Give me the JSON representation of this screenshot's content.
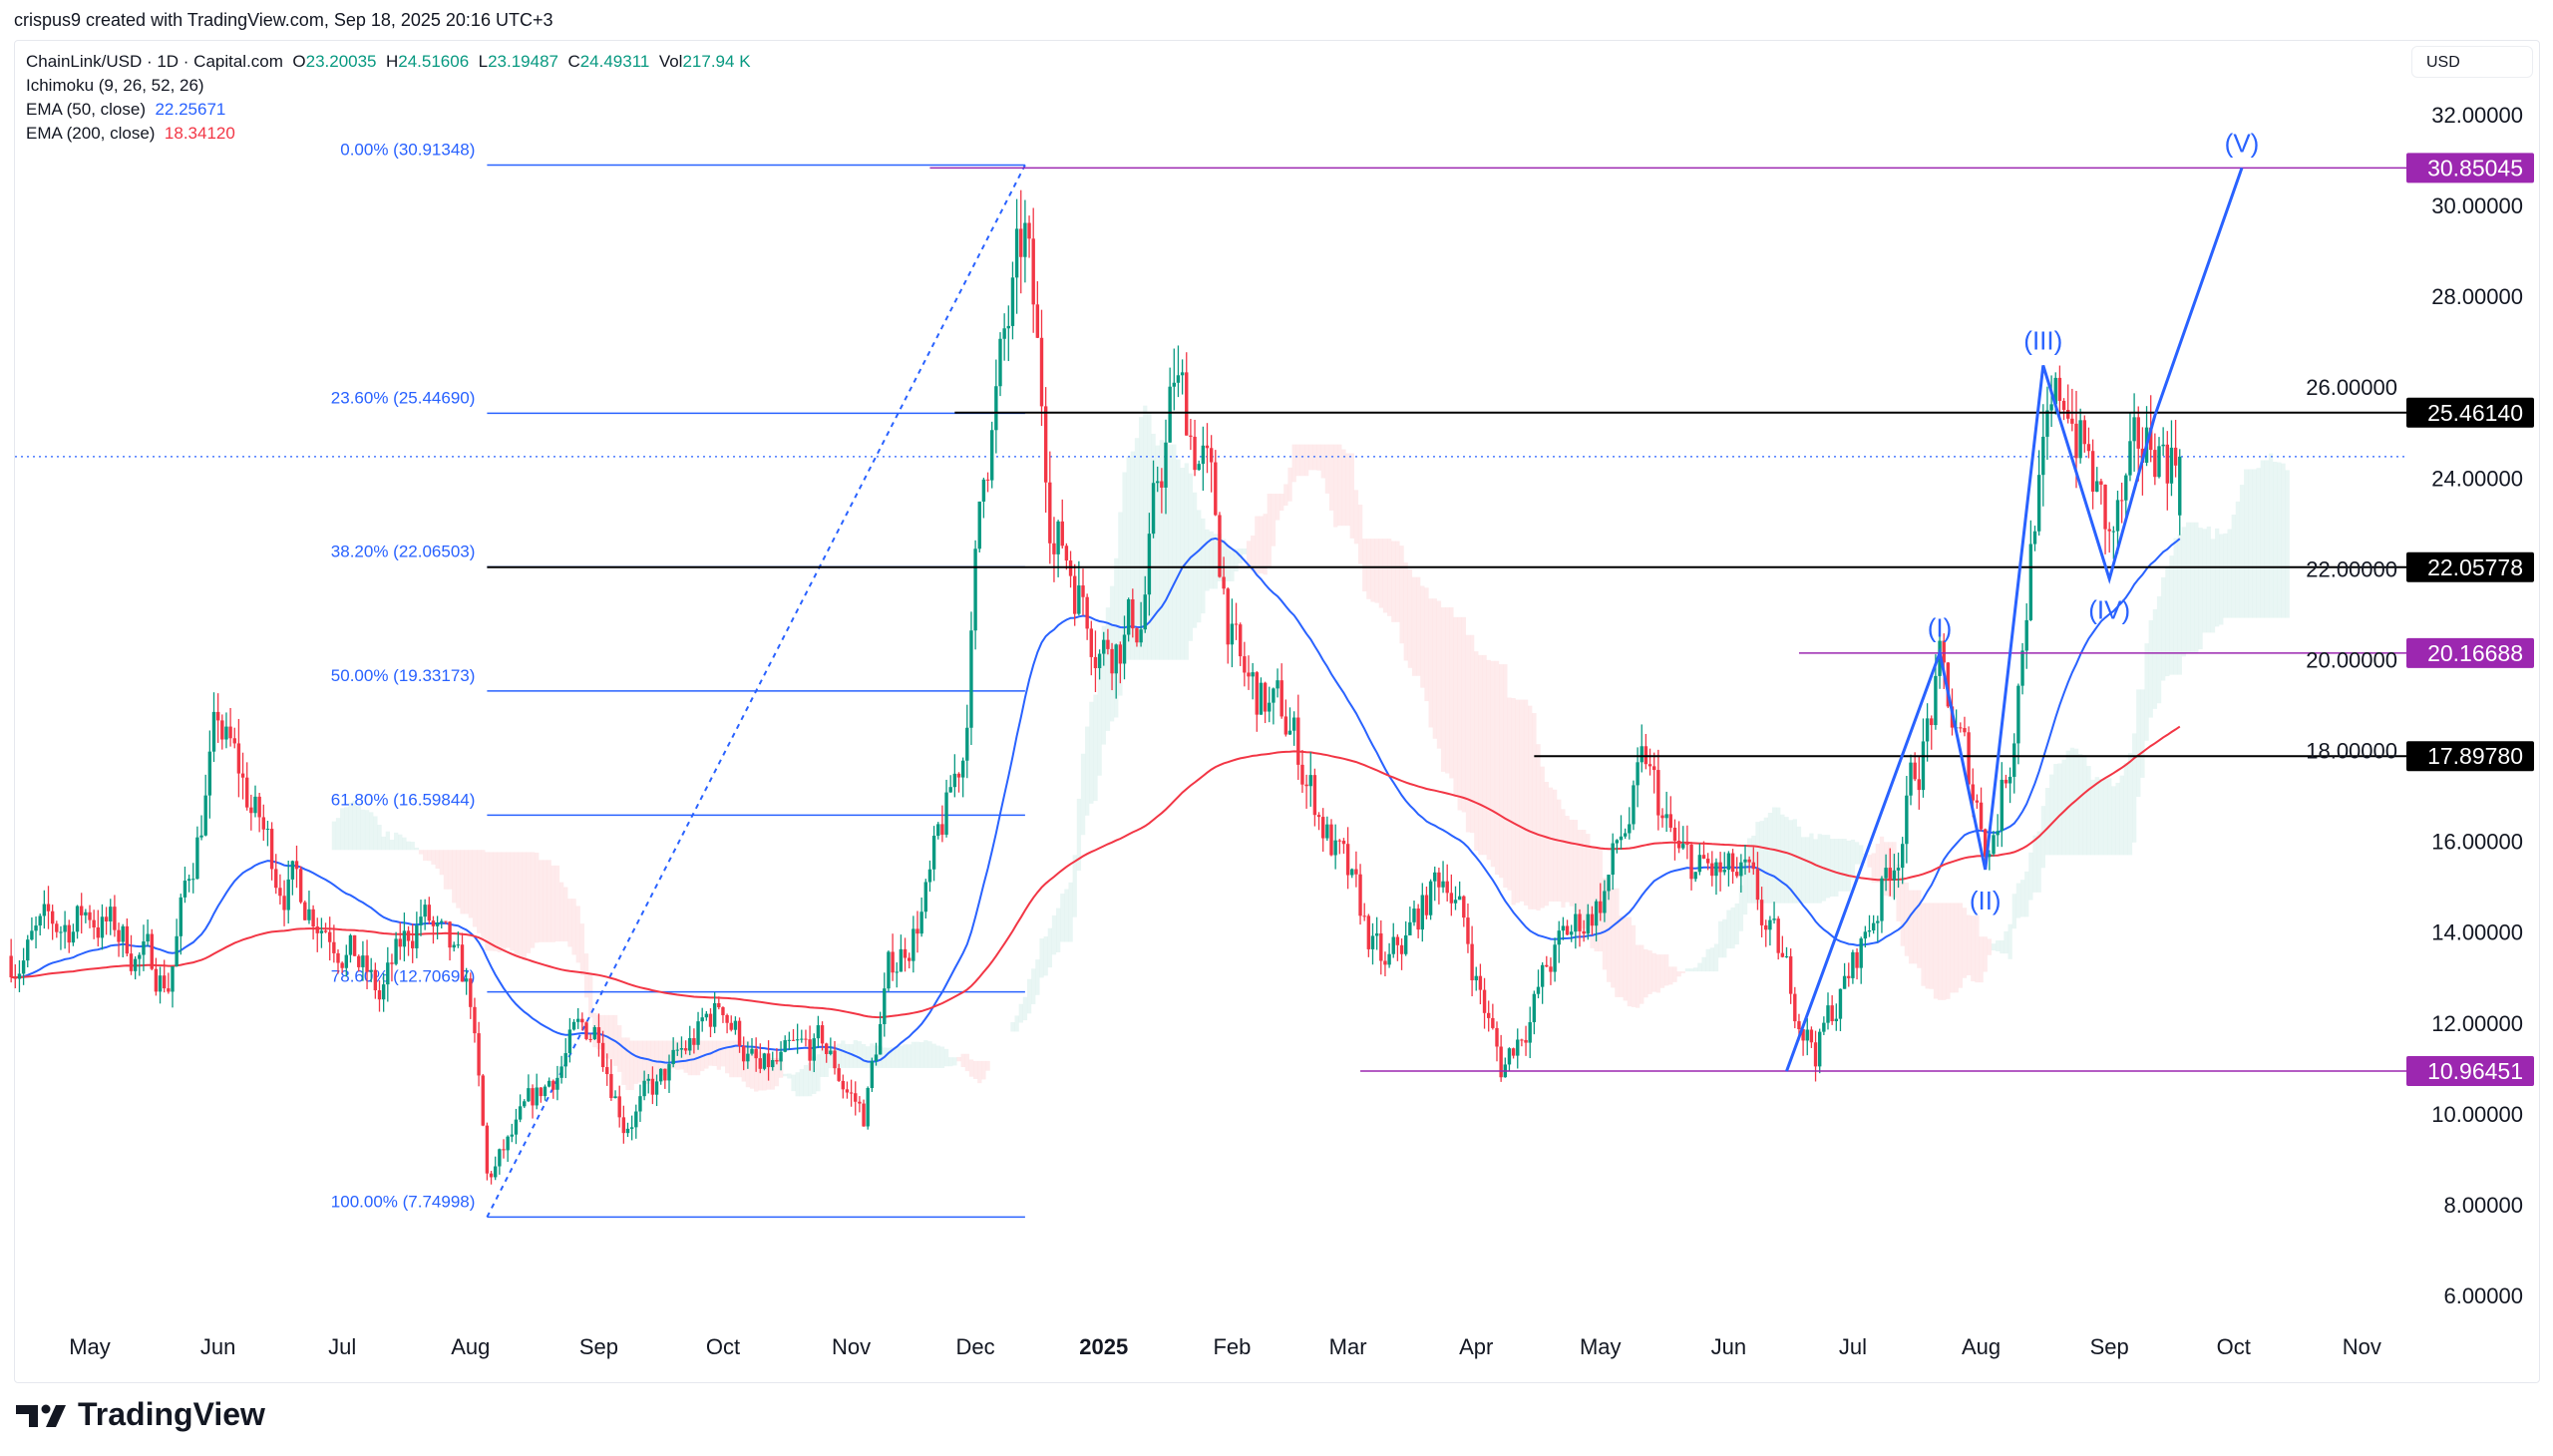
{
  "credit": "crispus9 created with TradingView.com, Sep 18, 2025 20:16 UTC+3",
  "legend": {
    "symbol": "ChainLink/USD · 1D · Capital.com",
    "open_label": "O",
    "open": "23.20035",
    "high_label": "H",
    "high": "24.51606",
    "low_label": "L",
    "low": "23.19487",
    "close_label": "C",
    "close": "24.49311",
    "vol_label": "Vol",
    "vol": "217.94 K",
    "ichimoku": "Ichimoku (9, 26, 52, 26)",
    "ema50_label": "EMA (50, close)",
    "ema50": "22.25671",
    "ema200_label": "EMA (200, close)",
    "ema200": "18.34120"
  },
  "currency": "USD",
  "brand": "TradingView",
  "colors": {
    "up": "#089981",
    "down": "#f23645",
    "ema50": "#2962ff",
    "ema200": "#f23645",
    "fib": "#2962ff",
    "purple": "#9c27b0",
    "black": "#000000",
    "wave": "#2962ff"
  },
  "chart_data": {
    "type": "candlestick",
    "symbol": "ChainLink/USD",
    "interval": "1D",
    "ylim": [
      6,
      32
    ],
    "y_ticks": [
      "32.00000",
      "30.00000",
      "28.00000",
      "26.00000",
      "24.00000",
      "22.00000",
      "20.00000",
      "18.00000",
      "16.00000",
      "14.00000",
      "12.00000",
      "10.00000",
      "8.00000",
      "6.00000"
    ],
    "x_ticks": [
      {
        "label": "May",
        "date": "2024-05-01"
      },
      {
        "label": "Jun",
        "date": "2024-06-01"
      },
      {
        "label": "Jul",
        "date": "2024-07-01"
      },
      {
        "label": "Aug",
        "date": "2024-08-01"
      },
      {
        "label": "Sep",
        "date": "2024-09-01"
      },
      {
        "label": "Oct",
        "date": "2024-10-01"
      },
      {
        "label": "Nov",
        "date": "2024-11-01"
      },
      {
        "label": "Dec",
        "date": "2024-12-01"
      },
      {
        "label": "2025",
        "date": "2025-01-01"
      },
      {
        "label": "Feb",
        "date": "2025-02-01"
      },
      {
        "label": "Mar",
        "date": "2025-03-01"
      },
      {
        "label": "Apr",
        "date": "2025-04-01"
      },
      {
        "label": "May",
        "date": "2025-05-01"
      },
      {
        "label": "Jun",
        "date": "2025-06-01"
      },
      {
        "label": "Jul",
        "date": "2025-07-01"
      },
      {
        "label": "Aug",
        "date": "2025-08-01"
      },
      {
        "label": "Sep",
        "date": "2025-09-01"
      },
      {
        "label": "Oct",
        "date": "2025-10-01"
      },
      {
        "label": "Nov",
        "date": "2025-11-01"
      }
    ],
    "approx_closes": [
      [
        "2024-04-12",
        13.5
      ],
      [
        "2024-05-01",
        14.5
      ],
      [
        "2024-05-20",
        13.0
      ],
      [
        "2024-06-01",
        18.5
      ],
      [
        "2024-06-15",
        15.5
      ],
      [
        "2024-07-01",
        14.0
      ],
      [
        "2024-07-10",
        12.5
      ],
      [
        "2024-07-20",
        14.5
      ],
      [
        "2024-08-01",
        12.5
      ],
      [
        "2024-08-05",
        8.5
      ],
      [
        "2024-08-15",
        10.0
      ],
      [
        "2024-08-25",
        11.5
      ],
      [
        "2024-09-01",
        12.0
      ],
      [
        "2024-09-07",
        10.0
      ],
      [
        "2024-09-15",
        10.5
      ],
      [
        "2024-10-01",
        12.5
      ],
      [
        "2024-10-10",
        10.8
      ],
      [
        "2024-10-25",
        11.5
      ],
      [
        "2024-11-04",
        10.0
      ],
      [
        "2024-11-10",
        13.0
      ],
      [
        "2024-11-20",
        15.0
      ],
      [
        "2024-11-28",
        18.0
      ],
      [
        "2024-12-03",
        24.5
      ],
      [
        "2024-12-13",
        29.0
      ],
      [
        "2024-12-20",
        23.0
      ],
      [
        "2025-01-01",
        20.5
      ],
      [
        "2025-01-10",
        21.0
      ],
      [
        "2025-01-18",
        26.0
      ],
      [
        "2025-01-25",
        24.5
      ],
      [
        "2025-02-03",
        19.5
      ],
      [
        "2025-02-15",
        18.5
      ],
      [
        "2025-03-01",
        15.0
      ],
      [
        "2025-03-10",
        13.0
      ],
      [
        "2025-03-25",
        15.5
      ],
      [
        "2025-04-07",
        11.0
      ],
      [
        "2025-04-20",
        13.5
      ],
      [
        "2025-05-01",
        14.8
      ],
      [
        "2025-05-12",
        17.5
      ],
      [
        "2025-05-20",
        15.5
      ],
      [
        "2025-06-05",
        15.0
      ],
      [
        "2025-06-15",
        13.0
      ],
      [
        "2025-06-22",
        11.5
      ],
      [
        "2025-07-01",
        13.2
      ],
      [
        "2025-07-10",
        15.5
      ],
      [
        "2025-07-22",
        19.5
      ],
      [
        "2025-08-03",
        16.0
      ],
      [
        "2025-08-08",
        18.0
      ],
      [
        "2025-08-14",
        23.5
      ],
      [
        "2025-08-22",
        26.0
      ],
      [
        "2025-09-01",
        22.5
      ],
      [
        "2025-09-12",
        25.0
      ],
      [
        "2025-09-18",
        24.49311
      ]
    ],
    "last_price": 24.49311,
    "fibonacci": {
      "from": {
        "date": "2024-08-05",
        "price": 7.74998
      },
      "to": {
        "date": "2024-12-13",
        "price": 30.91348
      },
      "levels": [
        {
          "label": "0.00% (30.91348)",
          "price": 30.91348
        },
        {
          "label": "23.60% (25.44690)",
          "price": 25.4469
        },
        {
          "label": "38.20% (22.06503)",
          "price": 22.06503
        },
        {
          "label": "50.00% (19.33173)",
          "price": 19.33173
        },
        {
          "label": "61.80% (16.59844)",
          "price": 16.59844
        },
        {
          "label": "78.60% (12.70697)",
          "price": 12.70697
        },
        {
          "label": "100.00% (7.74998)",
          "price": 7.74998
        }
      ]
    },
    "horizontal_levels": [
      {
        "label": "30.85045",
        "price": 30.85045,
        "color": "purple",
        "from": "2024-11-20"
      },
      {
        "label": "25.46140",
        "price": 25.4614,
        "color": "black",
        "from": "2024-11-26"
      },
      {
        "label": "22.05778",
        "price": 22.05778,
        "color": "black",
        "from": "2024-08-05"
      },
      {
        "label": "20.16688",
        "price": 20.16688,
        "color": "purple",
        "from": "2025-06-18"
      },
      {
        "label": "17.89780",
        "price": 17.8978,
        "color": "black",
        "from": "2025-04-15"
      },
      {
        "label": "10.96451",
        "price": 10.96451,
        "color": "purple",
        "from": "2025-03-04"
      }
    ],
    "elliott_wave": [
      {
        "label": "",
        "date": "2025-06-15",
        "price": 10.96
      },
      {
        "label": "(I)",
        "date": "2025-07-22",
        "price": 20.17
      },
      {
        "label": "(II)",
        "date": "2025-08-02",
        "price": 15.4
      },
      {
        "label": "(III)",
        "date": "2025-08-16",
        "price": 26.5
      },
      {
        "label": "(IV)",
        "date": "2025-09-01",
        "price": 21.8
      },
      {
        "label": "",
        "date": "2025-09-12",
        "price": 25.4
      },
      {
        "label": "(V)",
        "date": "2025-10-03",
        "price": 30.85
      }
    ]
  }
}
